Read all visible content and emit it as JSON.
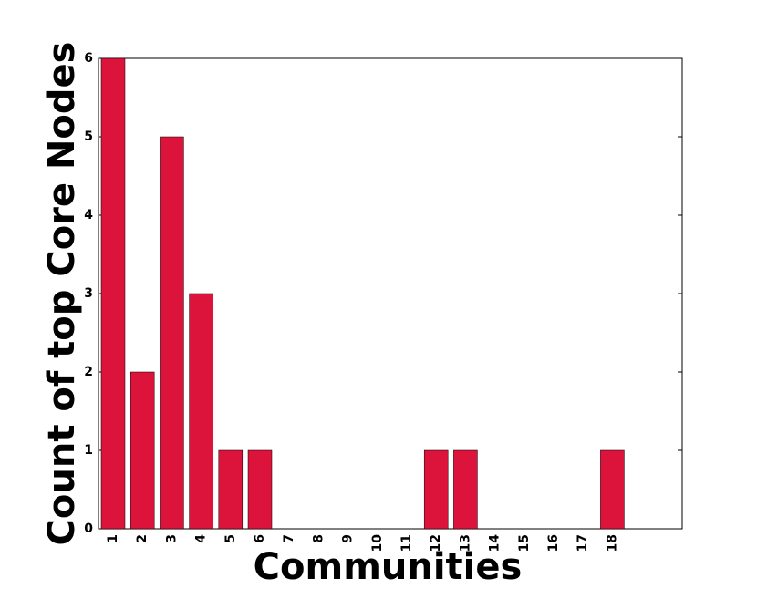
{
  "chart_data": {
    "type": "bar",
    "xlabel": "Communities",
    "ylabel": "Count of top Core Nodes",
    "categories": [
      "1",
      "2",
      "3",
      "4",
      "5",
      "6",
      "7",
      "8",
      "9",
      "10",
      "11",
      "12",
      "13",
      "14",
      "15",
      "16",
      "17",
      "18"
    ],
    "values": [
      6,
      2,
      5,
      3,
      1,
      1,
      0,
      0,
      0,
      0,
      0,
      1,
      1,
      0,
      0,
      0,
      0,
      1
    ],
    "color": "#dc143c",
    "ylim": [
      0,
      6
    ],
    "yticks": [
      0,
      1,
      2,
      3,
      4,
      5,
      6
    ],
    "grid": false
  }
}
